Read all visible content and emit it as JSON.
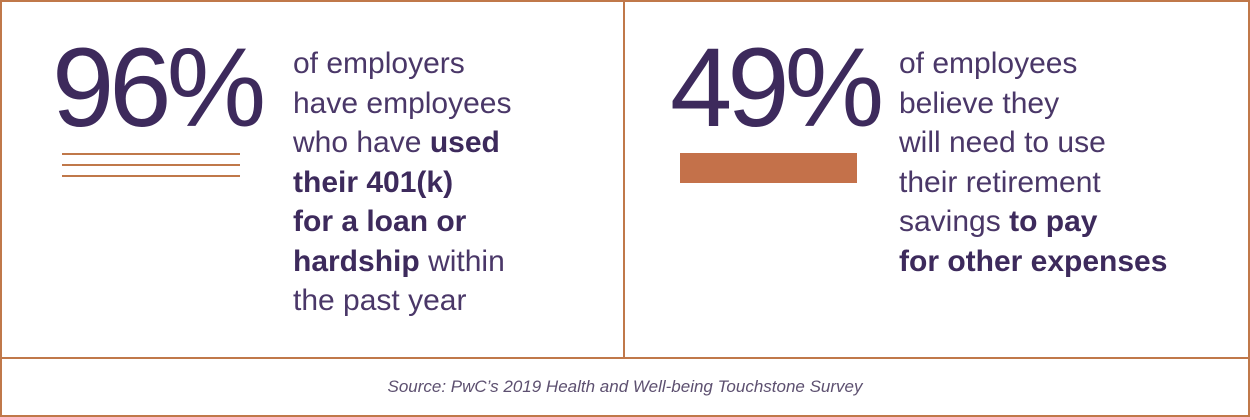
{
  "panels": [
    {
      "stat": "96%",
      "lines": [
        [
          {
            "text": "of employers",
            "strong": false
          }
        ],
        [
          {
            "text": "have employees",
            "strong": false
          }
        ],
        [
          {
            "text": "who have",
            "strong": false
          },
          {
            "text": "used",
            "strong": true
          }
        ],
        [
          {
            "text": "their 401(k)",
            "strong": true
          }
        ],
        [
          {
            "text": "for a loan or",
            "strong": true
          }
        ],
        [
          {
            "text": "hardship",
            "strong": true
          },
          {
            "text": "within",
            "strong": false
          }
        ],
        [
          {
            "text": "the past year",
            "strong": false
          }
        ]
      ]
    },
    {
      "stat": "49%",
      "lines": [
        [
          {
            "text": "of employees",
            "strong": false
          }
        ],
        [
          {
            "text": "believe they",
            "strong": false
          }
        ],
        [
          {
            "text": "will need to use",
            "strong": false
          }
        ],
        [
          {
            "text": "their retirement",
            "strong": false
          }
        ],
        [
          {
            "text": "savings",
            "strong": false
          },
          {
            "text": "to pay",
            "strong": true
          }
        ],
        [
          {
            "text": "for other expenses",
            "strong": true
          }
        ]
      ]
    }
  ],
  "footer": {
    "source": "Source: PwC’s 2019 Health and Well-being Touchstone Survey"
  }
}
